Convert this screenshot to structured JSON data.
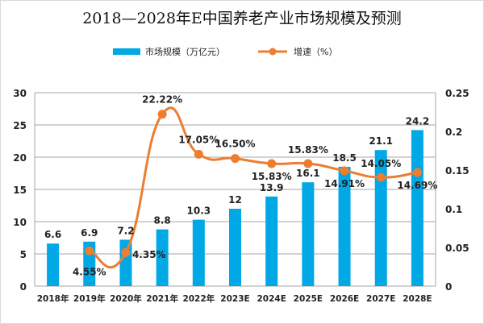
{
  "chart_data": {
    "type": "bar+line",
    "title": "2018—2028年E中国养老产业市场规模及预测",
    "categories": [
      "2018年",
      "2019年",
      "2020年",
      "2021年",
      "2022年",
      "2023E",
      "2024E",
      "2025E",
      "2026E",
      "2027E",
      "2028E"
    ],
    "series": [
      {
        "name": "市场规模（万亿元）",
        "type": "bar",
        "axis": "left",
        "color": "#00a8e6",
        "values": [
          6.6,
          6.9,
          7.2,
          8.8,
          10.3,
          12,
          13.9,
          16.1,
          18.5,
          21.1,
          24.2
        ],
        "labels": [
          "6.6",
          "6.9",
          "7.2",
          "8.8",
          "10.3",
          "12",
          "13.9",
          "16.1",
          "18.5",
          "21.1",
          "24.2"
        ]
      },
      {
        "name": "增速（%）",
        "type": "line",
        "axis": "right",
        "color": "#ed7d31",
        "values": [
          null,
          0.0455,
          0.0435,
          0.2222,
          0.1705,
          0.165,
          0.1583,
          0.1583,
          0.1491,
          0.1405,
          0.1469
        ],
        "labels": [
          "",
          "4.55%",
          "4.35%",
          "22.22%",
          "17.05%",
          "16.50%",
          "15.83%",
          "15.83%",
          "14.91%",
          "14.05%",
          "14.69%"
        ]
      }
    ],
    "left_axis": {
      "ylim": [
        0,
        30
      ],
      "ticks": [
        "0",
        "5",
        "10",
        "15",
        "20",
        "25",
        "30"
      ]
    },
    "right_axis": {
      "ylim": [
        0,
        0.25
      ],
      "ticks": [
        "0",
        "0.05",
        "0.1",
        "0.15",
        "0.2",
        "0.25"
      ]
    },
    "grid": true,
    "legend": "top"
  }
}
